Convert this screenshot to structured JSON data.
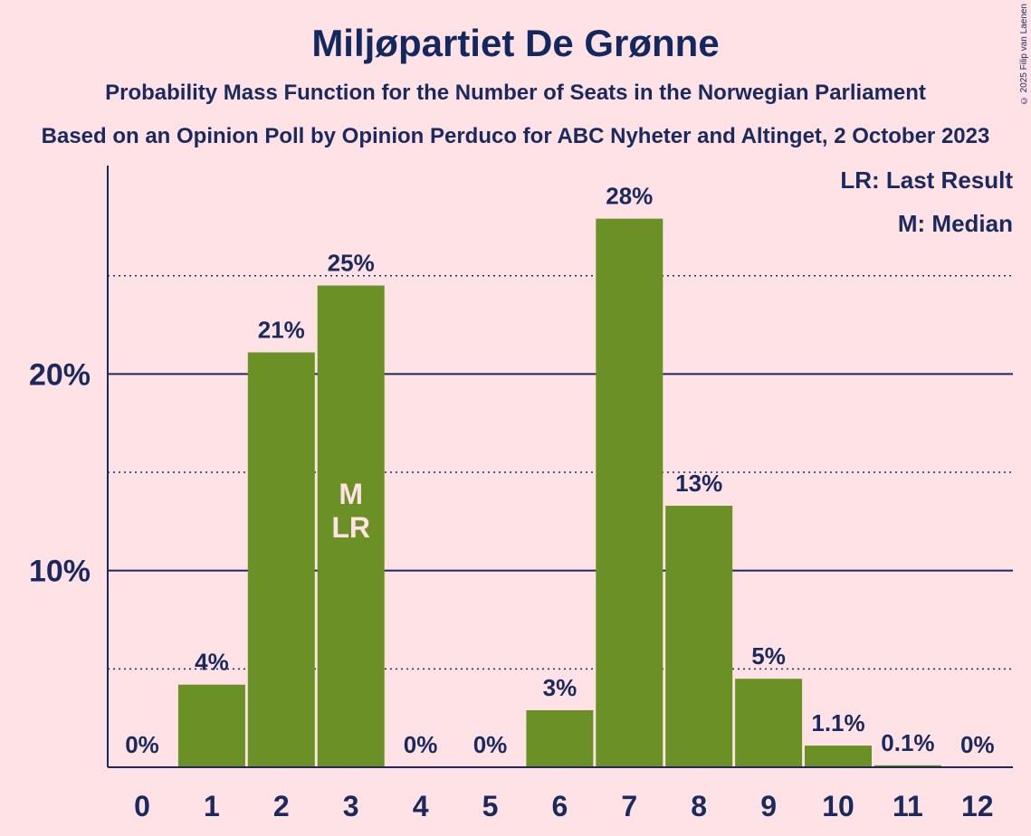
{
  "header": {
    "title": "Miljøpartiet De Grønne",
    "subtitle": "Probability Mass Function for the Number of Seats in the Norwegian Parliament",
    "source": "Based on an Opinion Poll by Opinion Perduco for ABC Nyheter and Altinget, 2 October 2023",
    "copyright": "© 2025 Filip van Laenen"
  },
  "legend": {
    "last_result": "LR: Last Result",
    "median": "M: Median"
  },
  "colors": {
    "background": "#FFE2E5",
    "bar": "#6B9126",
    "axis": "#1B2A5E",
    "marker_text": "#FFE2E5"
  },
  "chart_data": {
    "type": "bar",
    "categories": [
      "0",
      "1",
      "2",
      "3",
      "4",
      "5",
      "6",
      "7",
      "8",
      "9",
      "10",
      "11",
      "12"
    ],
    "values": [
      0,
      4.2,
      21.1,
      24.5,
      0,
      0,
      2.9,
      27.9,
      13.3,
      4.5,
      1.1,
      0.1,
      0
    ],
    "data_labels": [
      "0%",
      "4%",
      "21%",
      "25%",
      "0%",
      "0%",
      "3%",
      "28%",
      "13%",
      "5%",
      "1.1%",
      "0.1%",
      "0%"
    ],
    "ylim": [
      0,
      30.6
    ],
    "yticks": [
      10,
      20
    ],
    "ytick_labels": [
      "10%",
      "20%"
    ],
    "minor_gridlines": [
      5,
      15,
      25
    ],
    "markers": [
      {
        "category": "3",
        "lines": [
          "M",
          "LR"
        ]
      }
    ],
    "xlabel": "",
    "ylabel": "",
    "grid": true,
    "legend_placement": "top-right"
  }
}
